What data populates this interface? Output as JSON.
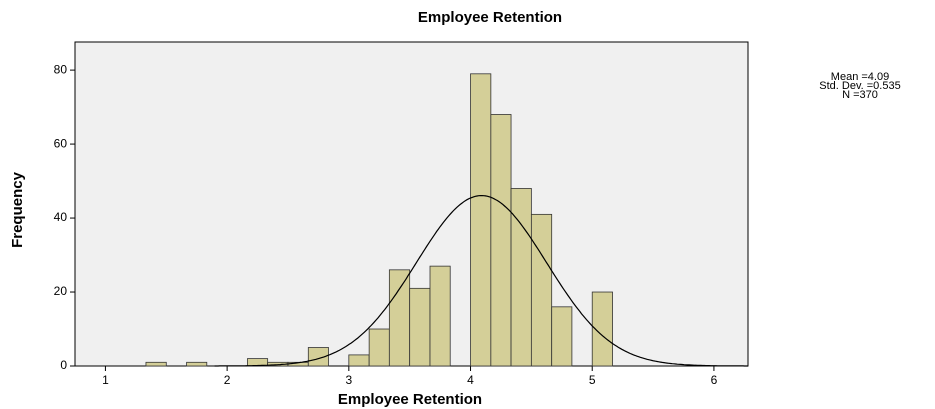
{
  "chart_data": {
    "type": "histogram",
    "title": "Employee Retention",
    "x_label": "Employee Retention",
    "y_label": "Frequency",
    "bins": [
      1.333,
      1.5,
      1.667,
      1.833,
      2,
      2.167,
      2.333,
      2.5,
      2.667,
      2.833,
      3,
      3.167,
      3.333,
      3.5,
      3.667,
      3.833,
      4,
      4.167,
      4.333,
      4.5,
      4.667,
      4.833,
      5,
      5.167
    ],
    "counts": [
      1,
      0,
      1,
      0,
      0,
      2,
      1,
      1,
      5,
      0,
      3,
      10,
      26,
      21,
      27,
      0,
      79,
      68,
      48,
      41,
      16,
      0,
      20
    ],
    "color": "#d4cf98",
    "xlim": [
      0.75,
      6.28
    ],
    "xticks": [
      1,
      2,
      3,
      4,
      5,
      6
    ],
    "ylim": [
      0,
      87.6
    ],
    "yticks": [
      0,
      20,
      40,
      60,
      80
    ],
    "stats": [
      {
        "value": 4.09,
        "label": "Mean =4.09"
      },
      {
        "value": 0.535,
        "label": "Std. Dev. =0.535"
      },
      {
        "value": 370,
        "label": "N =370"
      }
    ]
  }
}
